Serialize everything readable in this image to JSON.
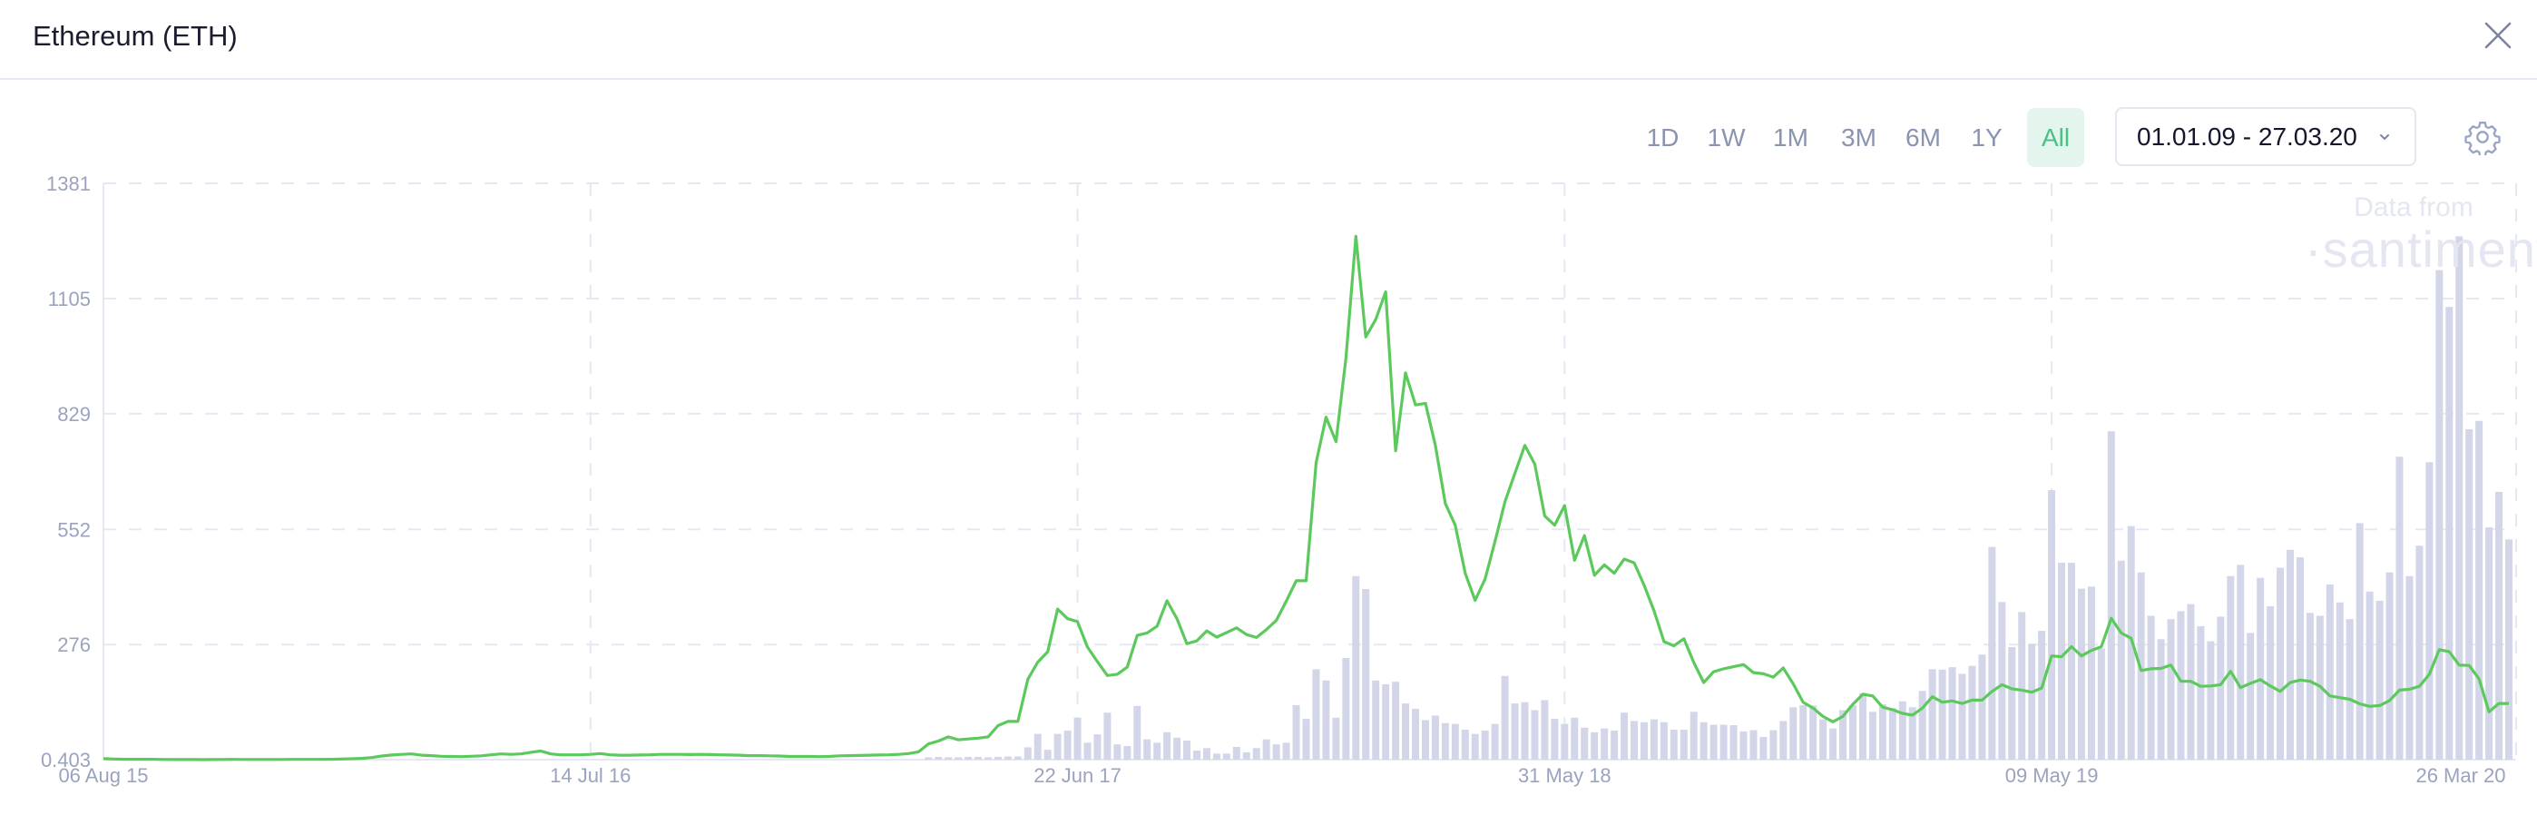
{
  "header": {
    "title": "Ethereum (ETH)",
    "close_icon": "close-icon"
  },
  "toolbar": {
    "ranges": [
      {
        "label": "1D",
        "active": false
      },
      {
        "label": "1W",
        "active": false
      },
      {
        "label": "1M",
        "active": false
      },
      {
        "label": "3M",
        "active": false
      },
      {
        "label": "6M",
        "active": false
      },
      {
        "label": "1Y",
        "active": false
      },
      {
        "label": "All",
        "active": true
      }
    ],
    "date_range": "01.01.09 - 27.03.20",
    "settings_icon": "gear-icon"
  },
  "watermark": {
    "line1": "Data from",
    "line2": "·santiment·"
  },
  "colors": {
    "price_line": "#5cc95c",
    "volume_bars": "#d3d6e8",
    "grid": "#e5e7f2",
    "accent": "#4cc185"
  },
  "chart_data": {
    "type": "line+bar",
    "x_start": "2015-08-06",
    "interval": "1 week",
    "xlim": [
      "2015-08-06",
      "2020-03-26"
    ],
    "ylim": [
      0.403,
      1381
    ],
    "y_ticks": [
      "0.403",
      "276",
      "552",
      "829",
      "1105",
      "1381"
    ],
    "x_ticks": [
      {
        "date": "2015-08-06",
        "label": "06 Aug 15"
      },
      {
        "date": "2016-07-14",
        "label": "14 Jul 16"
      },
      {
        "date": "2017-06-22",
        "label": "22 Jun 17"
      },
      {
        "date": "2018-05-31",
        "label": "31 May 18"
      },
      {
        "date": "2019-05-09",
        "label": "09 May 19"
      },
      {
        "date": "2020-03-26",
        "label": "26 Mar 20"
      }
    ],
    "grid": true,
    "price": [
      2.8,
      1.9,
      1.3,
      1.3,
      1.2,
      1.3,
      0.9,
      0.7,
      0.6,
      0.6,
      0.5,
      0.55,
      0.9,
      1.0,
      0.9,
      0.9,
      0.9,
      0.9,
      0.85,
      0.95,
      0.95,
      0.95,
      1.0,
      1.3,
      2.0,
      2.5,
      3.5,
      5.5,
      9.0,
      11.5,
      13,
      14,
      11,
      10,
      8.5,
      8,
      7.5,
      8.5,
      9.5,
      12,
      14,
      13,
      14,
      18,
      21,
      14,
      12,
      12,
      12,
      13,
      15,
      12,
      11,
      11,
      11.5,
      12,
      13,
      13,
      13,
      12.5,
      13,
      12.5,
      12,
      11.5,
      11,
      10,
      10,
      9.5,
      9,
      8,
      8,
      8,
      7.5,
      8,
      9.5,
      10,
      10.5,
      11,
      11.5,
      12,
      13,
      15,
      19,
      38,
      45,
      55,
      48,
      50,
      52,
      55,
      82,
      92,
      92,
      193,
      234,
      259,
      361,
      338,
      331,
      270,
      235,
      202,
      205,
      222,
      298,
      304,
      320,
      381,
      338,
      278,
      285,
      309,
      294,
      305,
      316,
      300,
      293,
      312,
      334,
      380,
      429,
      429,
      712,
      821,
      762,
      961,
      1254,
      1013,
      1055,
      1121,
      740,
      927,
      850,
      854,
      753,
      614,
      562,
      447,
      382,
      433,
      523,
      618,
      686,
      753,
      708,
      584,
      562,
      609,
      478,
      537,
      442,
      467,
      447,
      481,
      472,
      418,
      357,
      283,
      273,
      290,
      233,
      185,
      211,
      218,
      223,
      228,
      209,
      206,
      198,
      220,
      182,
      138,
      124,
      104,
      91,
      104,
      133,
      157,
      153,
      126,
      120,
      111,
      107,
      124,
      151,
      138,
      141,
      135,
      143,
      143,
      164,
      180,
      170,
      167,
      162,
      172,
      249,
      247,
      271,
      249,
      262,
      271,
      339,
      304,
      291,
      214,
      218,
      219,
      227,
      188,
      188,
      176,
      177,
      180,
      212,
      173,
      183,
      192,
      177,
      164,
      185,
      191,
      188,
      176,
      153,
      149,
      145,
      134,
      128,
      130,
      142,
      167,
      169,
      176,
      205,
      264,
      259,
      227,
      226,
      194,
      115,
      135,
      135
    ],
    "volume": [
      0,
      0,
      0,
      0,
      0,
      0,
      0,
      0,
      0,
      0,
      0,
      0,
      0,
      0,
      0,
      0,
      0,
      0,
      0,
      0,
      0,
      0,
      0,
      0,
      0,
      0,
      0,
      0,
      0,
      0,
      0,
      0,
      0,
      0,
      0,
      0,
      0,
      0,
      0,
      0,
      0,
      0,
      0,
      0,
      0,
      0,
      0,
      0,
      0,
      0,
      0,
      0,
      0,
      0,
      0,
      0,
      0,
      0,
      0,
      0,
      0,
      0,
      0,
      0,
      0,
      0,
      0,
      0,
      0,
      0,
      0,
      0,
      0,
      0,
      0,
      0,
      0,
      0,
      0,
      0,
      0,
      0,
      0,
      6,
      7,
      6,
      6,
      7,
      7,
      6,
      7,
      8,
      8,
      30,
      62,
      24,
      62,
      70,
      101,
      41,
      61,
      113,
      37,
      33,
      129,
      49,
      41,
      66,
      53,
      46,
      22,
      28,
      15,
      15,
      31,
      18,
      28,
      49,
      37,
      41,
      131,
      98,
      217,
      190,
      101,
      244,
      440,
      409,
      190,
      181,
      187,
      135,
      122,
      95,
      106,
      88,
      86,
      72,
      62,
      70,
      86,
      201,
      135,
      138,
      119,
      143,
      98,
      86,
      101,
      77,
      66,
      75,
      70,
      113,
      93,
      90,
      97,
      90,
      72,
      72,
      115,
      90,
      84,
      84,
      83,
      68,
      71,
      55,
      71,
      93,
      126,
      131,
      130,
      97,
      75,
      119,
      131,
      160,
      115,
      133,
      124,
      140,
      126,
      165,
      217,
      216,
      222,
      206,
      225,
      252,
      510,
      378,
      270,
      354,
      278,
      309,
      646,
      472,
      472,
      410,
      415,
      267,
      787,
      477,
      560,
      449,
      345,
      289,
      337,
      356,
      373,
      320,
      284,
      343,
      440,
      467,
      304,
      436,
      368,
      460,
      503,
      485,
      352,
      345,
      420,
      377,
      337,
      567,
      403,
      381,
      449,
      726,
      440,
      513,
      713,
      1173,
      1085,
      1254,
      792,
      812,
      557,
      642,
      528
    ]
  }
}
